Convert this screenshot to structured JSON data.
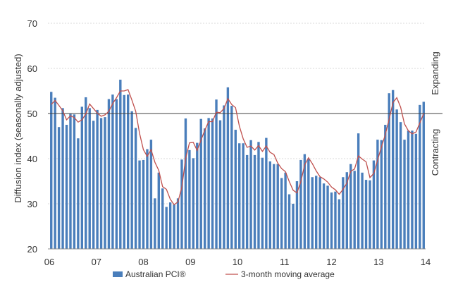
{
  "chart_data": {
    "type": "bar",
    "ylabel": "Diffusion index (seasonally adjusted)",
    "ylim": [
      20,
      70
    ],
    "yticks": [
      "20",
      "30",
      "40",
      "50",
      "60",
      "70"
    ],
    "xticks": [
      "06",
      "07",
      "08",
      "09",
      "10",
      "11",
      "12",
      "13",
      "14"
    ],
    "reference_line": 50,
    "side_labels": {
      "above": "Expanding",
      "below": "Contracting"
    },
    "grid": true,
    "legend_position": "bottom",
    "colors": {
      "bars": "#4a7ebb",
      "line": "#c0504d",
      "grid": "#d9d9d9",
      "reference": "#404040"
    },
    "series": [
      {
        "name": "Australian PCI®",
        "kind": "bar",
        "values": [
          54.8,
          53.5,
          47.0,
          51.2,
          47.5,
          49.9,
          49.8,
          44.5,
          51.5,
          53.6,
          51.2,
          48.4,
          50.8,
          49.0,
          49.2,
          53.2,
          54.2,
          53.2,
          57.5,
          54.1,
          54.2,
          50.5,
          46.8,
          39.6,
          39.7,
          42.1,
          44.2,
          31.2,
          36.9,
          33.4,
          29.3,
          30.3,
          29.8,
          31.2,
          39.8,
          48.9,
          41.9,
          40.1,
          43.5,
          48.8,
          46.7,
          49.0,
          48.9,
          53.1,
          48.5,
          51.8,
          55.8,
          51.7,
          46.4,
          43.4,
          43.4,
          40.8,
          44.1,
          40.8,
          43.7,
          40.2,
          44.6,
          39.4,
          38.8,
          38.8,
          35.7,
          36.9,
          32.1,
          30.0,
          35.0,
          39.7,
          41.0,
          39.9,
          35.9,
          36.2,
          35.9,
          34.5,
          34.0,
          32.5,
          32.7,
          31.0,
          35.9,
          37.0,
          38.8,
          37.3,
          45.6,
          36.9,
          35.3,
          35.2,
          39.6,
          44.2,
          44.1,
          47.5,
          54.5,
          55.2,
          50.9,
          48.1,
          44.2,
          46.2,
          46.2,
          45.5,
          51.9,
          52.6
        ]
      },
      {
        "name": "3-month moving average",
        "kind": "line",
        "values": [
          52.0,
          52.9,
          51.8,
          50.6,
          48.6,
          49.5,
          49.1,
          48.1,
          48.6,
          49.9,
          52.1,
          51.1,
          50.1,
          49.4,
          49.7,
          50.5,
          52.2,
          53.5,
          55.0,
          55.0,
          55.3,
          53.0,
          50.5,
          45.6,
          42.0,
          40.5,
          42.0,
          39.2,
          37.4,
          33.8,
          33.2,
          31.0,
          29.8,
          30.4,
          33.6,
          40.0,
          43.5,
          43.6,
          41.8,
          44.1,
          46.3,
          48.2,
          48.2,
          50.3,
          50.2,
          51.1,
          53.3,
          52.0,
          51.3,
          47.2,
          44.4,
          42.5,
          42.8,
          41.9,
          42.9,
          41.6,
          42.8,
          41.4,
          40.9,
          39.0,
          37.8,
          37.1,
          34.9,
          33.0,
          32.4,
          34.9,
          38.6,
          40.2,
          38.9,
          37.3,
          36.0,
          35.5,
          34.8,
          33.7,
          33.1,
          32.1,
          33.2,
          34.6,
          37.2,
          37.7,
          40.6,
          39.9,
          39.3,
          35.8,
          36.7,
          39.7,
          42.6,
          45.3,
          48.7,
          52.4,
          53.5,
          51.4,
          47.7,
          46.2,
          45.5,
          45.9,
          47.9,
          50.0
        ]
      }
    ]
  }
}
